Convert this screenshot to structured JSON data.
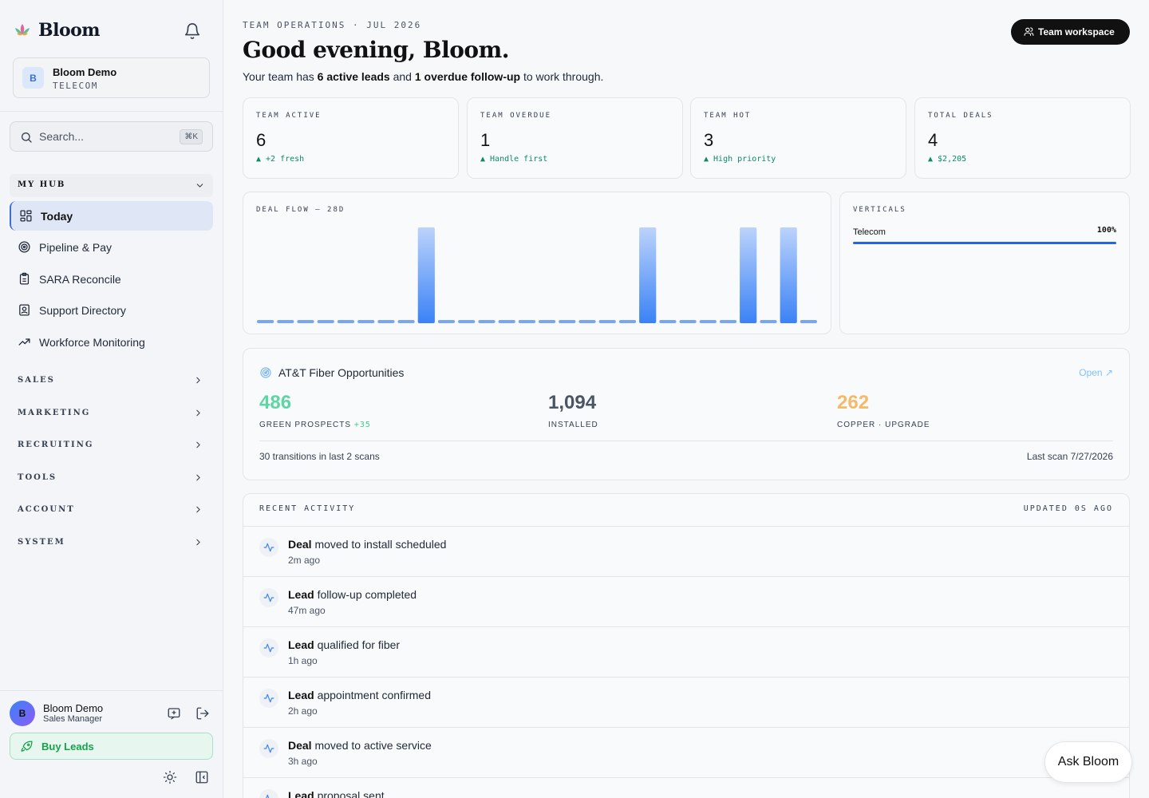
{
  "sidebar": {
    "brand": "Bloom",
    "workspace": {
      "avatar_letter": "B",
      "name": "Bloom Demo",
      "industry": "TELECOM"
    },
    "search": {
      "placeholder": "Search...",
      "shortcut": "⌘K"
    },
    "hub": {
      "label": "MY HUB",
      "items": [
        {
          "label": "Today",
          "icon": "dashboard-icon",
          "active": true
        },
        {
          "label": "Pipeline & Pay",
          "icon": "target-icon"
        },
        {
          "label": "SARA Reconcile",
          "icon": "clipboard-icon"
        },
        {
          "label": "Support Directory",
          "icon": "contact-card-icon"
        },
        {
          "label": "Workforce Monitoring",
          "icon": "trending-up-icon"
        }
      ]
    },
    "sections": [
      {
        "label": "SALES"
      },
      {
        "label": "MARKETING"
      },
      {
        "label": "RECRUITING"
      },
      {
        "label": "TOOLS"
      },
      {
        "label": "ACCOUNT"
      },
      {
        "label": "SYSTEM"
      }
    ],
    "user": {
      "avatar_letter": "B",
      "name": "Bloom Demo",
      "role": "Sales Manager"
    },
    "buy_leads": "Buy Leads"
  },
  "header": {
    "eyebrow": "TEAM OPERATIONS · JUL 2026",
    "greeting": "Good evening, Bloom.",
    "summary_prefix": "Your team has ",
    "summary_leads": "6 active leads",
    "summary_mid": " and ",
    "summary_overdue": "1 overdue follow-up",
    "summary_suffix": " to work through.",
    "team_button": "Team workspace"
  },
  "stats": [
    {
      "label": "TEAM ACTIVE",
      "value": "6",
      "delta": "▲ +2 fresh"
    },
    {
      "label": "TEAM OVERDUE",
      "value": "1",
      "delta": "▲ Handle first"
    },
    {
      "label": "TEAM HOT",
      "value": "3",
      "delta": "▲ High priority"
    },
    {
      "label": "TOTAL DEALS",
      "value": "4",
      "delta": "▲ $2,205"
    }
  ],
  "chart_data": {
    "type": "bar",
    "title": "DEAL FLOW — 28D",
    "days": 28,
    "values": [
      0,
      0,
      0,
      0,
      0,
      0,
      0,
      0,
      1,
      0,
      0,
      0,
      0,
      0,
      0,
      0,
      0,
      0,
      0,
      1,
      0,
      0,
      0,
      0,
      1,
      0,
      1,
      0
    ],
    "ylim": [
      0,
      1
    ],
    "colors": {
      "top": "#bcd3fb",
      "bottom": "#3b82f6"
    }
  },
  "verticals": {
    "title": "VERTICALS",
    "items": [
      {
        "name": "Telecom",
        "percent_label": "100%",
        "fraction": 1.0
      }
    ]
  },
  "att": {
    "title": "AT&T Fiber Opportunities",
    "open_label": "Open ↗",
    "metrics": [
      {
        "value": "486",
        "label": "GREEN PROSPECTS",
        "extra": "+35",
        "color": "#5ed6a4"
      },
      {
        "value": "1,094",
        "label": "INSTALLED",
        "extra": "",
        "color": "#4b5563"
      },
      {
        "value": "262",
        "label": "COPPER · UPGRADE",
        "extra": "",
        "color": "#f6b96a"
      }
    ],
    "footer_left": "30 transitions in last 2 scans",
    "footer_right": "Last scan 7/27/2026"
  },
  "activity": {
    "title": "RECENT ACTIVITY",
    "updated": "UPDATED 0S AGO",
    "items": [
      {
        "subject": "Deal",
        "text": " moved to install scheduled",
        "time": "2m ago"
      },
      {
        "subject": "Lead",
        "text": " follow-up completed",
        "time": "47m ago"
      },
      {
        "subject": "Lead",
        "text": " qualified for fiber",
        "time": "1h ago"
      },
      {
        "subject": "Lead",
        "text": " appointment confirmed",
        "time": "2h ago"
      },
      {
        "subject": "Deal",
        "text": " moved to active service",
        "time": "3h ago"
      },
      {
        "subject": "Lead",
        "text": " proposal sent",
        "time": ""
      }
    ]
  },
  "ask_bloom": "Ask Bloom"
}
